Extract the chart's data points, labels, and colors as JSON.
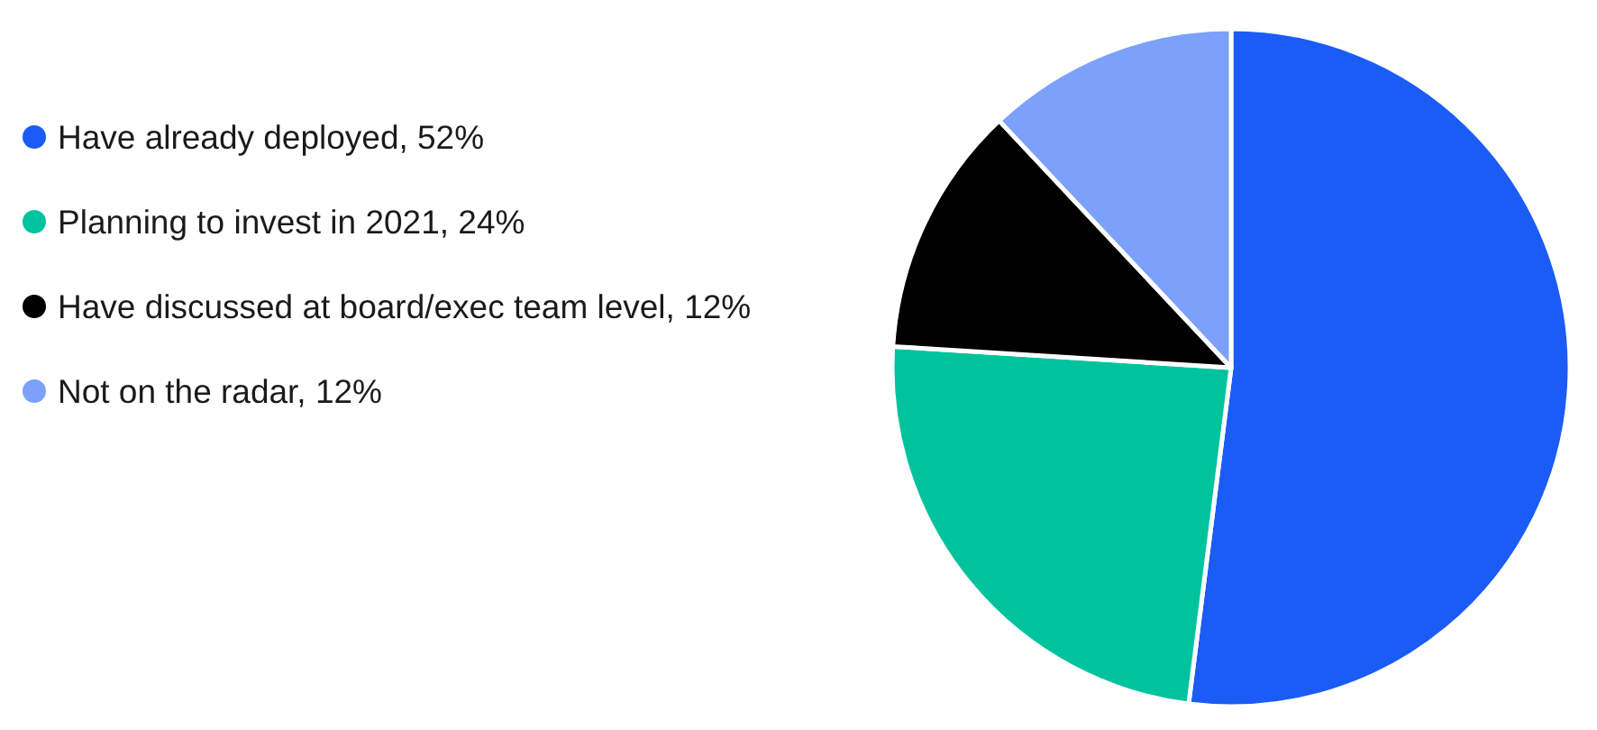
{
  "chart_data": {
    "type": "pie",
    "categories": [
      "Have already deployed",
      "Planning to invest in 2021",
      "Have discussed at board/exec team level",
      "Not on the radar"
    ],
    "values": [
      52,
      24,
      12,
      12
    ],
    "value_labels": [
      "52%",
      "24%",
      "12%",
      "12%"
    ],
    "colors": [
      "#1a5cf5",
      "#00c39e",
      "#000000",
      "#7ba1fb"
    ],
    "legend": "left"
  }
}
